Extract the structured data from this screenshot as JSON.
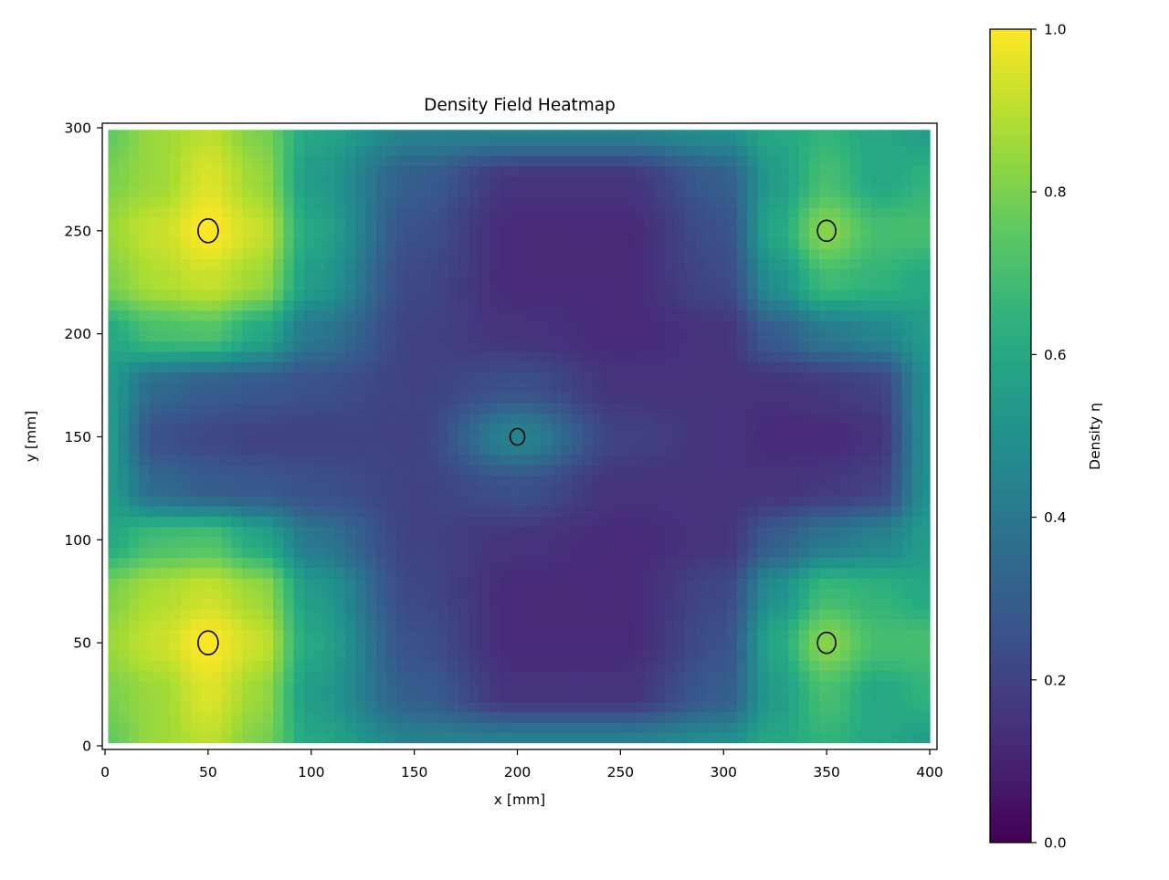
{
  "chart_data": {
    "type": "heatmap",
    "title": "Density Field Heatmap",
    "xlabel": "x [mm]",
    "ylabel": "y [mm]",
    "xlim": [
      0,
      400
    ],
    "ylim": [
      0,
      300
    ],
    "xticks": [
      0,
      50,
      100,
      150,
      200,
      250,
      300,
      350,
      400
    ],
    "yticks": [
      0,
      50,
      100,
      150,
      200,
      250,
      300
    ],
    "colormap": "viridis",
    "colorbar": {
      "label": "Density η",
      "range": [
        0,
        1
      ],
      "ticks": [
        "0.0",
        "0.2",
        "0.4",
        "0.6",
        "0.8",
        "1.0"
      ]
    },
    "grid": false,
    "grid_x": [
      0,
      25,
      50,
      75,
      100,
      150,
      200,
      250,
      300,
      325,
      350,
      375,
      400
    ],
    "grid_y": [
      0,
      25,
      50,
      75,
      100,
      125,
      150,
      175,
      200,
      225,
      250,
      275,
      300
    ],
    "values": [
      [
        0.75,
        0.85,
        0.9,
        0.8,
        0.6,
        0.45,
        0.45,
        0.45,
        0.5,
        0.6,
        0.65,
        0.6,
        0.55
      ],
      [
        0.8,
        0.85,
        0.95,
        0.85,
        0.55,
        0.3,
        0.15,
        0.15,
        0.3,
        0.55,
        0.7,
        0.6,
        0.65
      ],
      [
        0.85,
        0.92,
        1.0,
        0.92,
        0.6,
        0.25,
        0.12,
        0.12,
        0.25,
        0.6,
        0.82,
        0.7,
        0.7
      ],
      [
        0.8,
        0.88,
        0.92,
        0.85,
        0.55,
        0.22,
        0.12,
        0.12,
        0.22,
        0.5,
        0.68,
        0.65,
        0.6
      ],
      [
        0.6,
        0.7,
        0.72,
        0.6,
        0.4,
        0.2,
        0.15,
        0.12,
        0.15,
        0.3,
        0.4,
        0.45,
        0.55
      ],
      [
        0.55,
        0.35,
        0.3,
        0.28,
        0.25,
        0.2,
        0.25,
        0.15,
        0.15,
        0.15,
        0.17,
        0.2,
        0.5
      ],
      [
        0.55,
        0.25,
        0.22,
        0.2,
        0.2,
        0.2,
        0.45,
        0.2,
        0.15,
        0.12,
        0.12,
        0.15,
        0.5
      ],
      [
        0.55,
        0.35,
        0.3,
        0.28,
        0.25,
        0.2,
        0.25,
        0.15,
        0.15,
        0.15,
        0.17,
        0.2,
        0.5
      ],
      [
        0.6,
        0.7,
        0.72,
        0.6,
        0.4,
        0.2,
        0.15,
        0.12,
        0.15,
        0.3,
        0.4,
        0.45,
        0.55
      ],
      [
        0.8,
        0.88,
        0.92,
        0.85,
        0.55,
        0.22,
        0.12,
        0.12,
        0.22,
        0.5,
        0.68,
        0.65,
        0.6
      ],
      [
        0.85,
        0.92,
        1.0,
        0.92,
        0.6,
        0.25,
        0.12,
        0.12,
        0.25,
        0.6,
        0.82,
        0.7,
        0.7
      ],
      [
        0.8,
        0.85,
        0.95,
        0.85,
        0.55,
        0.3,
        0.15,
        0.15,
        0.3,
        0.55,
        0.7,
        0.6,
        0.65
      ],
      [
        0.75,
        0.85,
        0.9,
        0.8,
        0.6,
        0.45,
        0.45,
        0.45,
        0.5,
        0.6,
        0.65,
        0.6,
        0.55
      ]
    ],
    "markers": [
      {
        "x": 50,
        "y": 250,
        "size": "large"
      },
      {
        "x": 50,
        "y": 50,
        "size": "large"
      },
      {
        "x": 350,
        "y": 250,
        "size": "medium"
      },
      {
        "x": 350,
        "y": 50,
        "size": "medium"
      },
      {
        "x": 200,
        "y": 150,
        "size": "small"
      }
    ]
  }
}
